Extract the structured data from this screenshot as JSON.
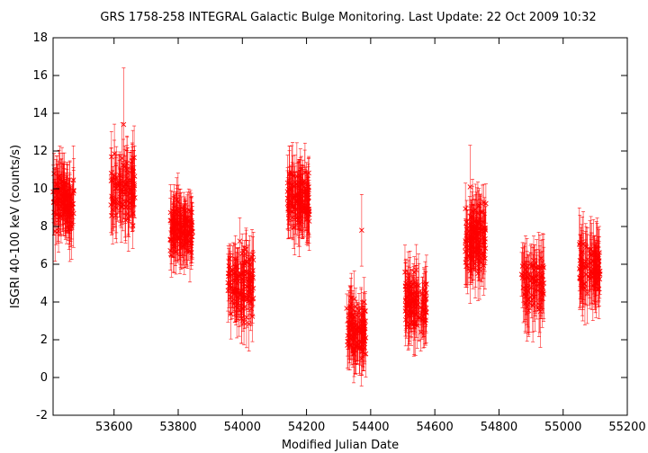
{
  "chart_data": {
    "type": "scatter",
    "title": "GRS 1758-258   INTEGRAL Galactic Bulge Monitoring.  Last Update: 22 Oct 2009 10:32",
    "xlabel": "Modified Julian Date",
    "ylabel": "ISGRI 40-100 keV (counts/s)",
    "xlim": [
      53410,
      55200
    ],
    "ylim": [
      -2,
      18
    ],
    "x_ticks": [
      53600,
      53800,
      54000,
      54200,
      54400,
      54600,
      54800,
      55000,
      55200
    ],
    "y_ticks": [
      -2,
      0,
      2,
      4,
      6,
      8,
      10,
      12,
      14,
      16,
      18
    ],
    "grid": false,
    "marker": "x",
    "errorbars": true,
    "color": "#ff0000",
    "visibility_windows": [
      {
        "x_range": [
          53410,
          53475
        ],
        "y_center": 9.3,
        "y_spread": 1.2,
        "err": 1.4,
        "n": 110
      },
      {
        "x_range": [
          53590,
          53665
        ],
        "y_center": 10.0,
        "y_spread": 1.5,
        "err": 1.5,
        "n": 100
      },
      {
        "x_range": [
          53775,
          53845
        ],
        "y_center": 7.9,
        "y_spread": 1.0,
        "err": 1.3,
        "n": 120
      },
      {
        "x_range": [
          53955,
          54035
        ],
        "y_center": 5.0,
        "y_spread": 1.5,
        "err": 1.3,
        "n": 120
      },
      {
        "x_range": [
          54140,
          54210
        ],
        "y_center": 9.3,
        "y_spread": 1.2,
        "err": 1.4,
        "n": 120
      },
      {
        "x_range": [
          54325,
          54385
        ],
        "y_center": 2.6,
        "y_spread": 1.3,
        "err": 1.2,
        "n": 100
      },
      {
        "x_range": [
          54505,
          54575
        ],
        "y_center": 3.9,
        "y_spread": 1.2,
        "err": 1.3,
        "n": 100
      },
      {
        "x_range": [
          54695,
          54760
        ],
        "y_center": 7.4,
        "y_spread": 1.3,
        "err": 1.4,
        "n": 120
      },
      {
        "x_range": [
          54870,
          54940
        ],
        "y_center": 5.0,
        "y_spread": 1.3,
        "err": 1.5,
        "n": 80
      },
      {
        "x_range": [
          55050,
          55115
        ],
        "y_center": 5.8,
        "y_spread": 1.3,
        "err": 1.5,
        "n": 90
      }
    ],
    "outliers": [
      {
        "x": 53630,
        "y": 13.4,
        "err": 3.0
      },
      {
        "x": 54372,
        "y": 7.8,
        "err": 1.9
      },
      {
        "x": 54710,
        "y": 10.1,
        "err": 2.2
      }
    ]
  }
}
